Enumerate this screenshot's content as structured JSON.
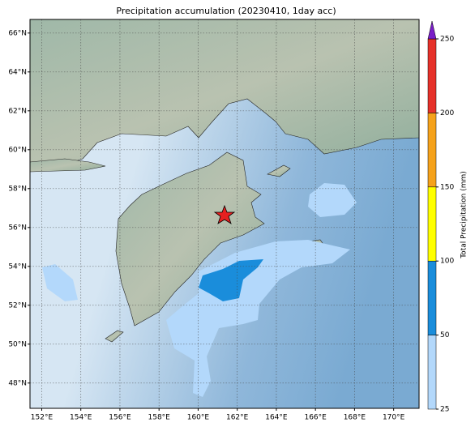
{
  "map": {
    "title": "Precipitation accumulation (20230410, 1day acc)",
    "xlim": [
      151.4,
      171.3
    ],
    "ylim": [
      46.7,
      66.7
    ],
    "xticks": [
      {
        "value": 152,
        "label": "152°E"
      },
      {
        "value": 154,
        "label": "154°E"
      },
      {
        "value": 156,
        "label": "156°E"
      },
      {
        "value": 158,
        "label": "158°E"
      },
      {
        "value": 160,
        "label": "160°E"
      },
      {
        "value": 162,
        "label": "162°E"
      },
      {
        "value": 164,
        "label": "164°E"
      },
      {
        "value": 166,
        "label": "166°E"
      },
      {
        "value": 168,
        "label": "168°E"
      },
      {
        "value": 170,
        "label": "170°E"
      }
    ],
    "yticks": [
      {
        "value": 48,
        "label": "48°N"
      },
      {
        "value": 50,
        "label": "50°N"
      },
      {
        "value": 52,
        "label": "52°N"
      },
      {
        "value": 54,
        "label": "54°N"
      },
      {
        "value": 56,
        "label": "56°N"
      },
      {
        "value": 58,
        "label": "58°N"
      },
      {
        "value": 60,
        "label": "60°N"
      },
      {
        "value": 62,
        "label": "62°N"
      },
      {
        "value": 64,
        "label": "64°N"
      },
      {
        "value": 66,
        "label": "66°N"
      }
    ],
    "grid": true
  },
  "colorbar": {
    "label": "Total Precipitation (mm)",
    "ticks": [
      25,
      50,
      100,
      150,
      200,
      250
    ],
    "colors": [
      "#b3d8fb",
      "#1a8ddb",
      "#ffff00",
      "#f5a21b",
      "#e6312a"
    ],
    "extend_color": "#7a1ec8"
  }
}
